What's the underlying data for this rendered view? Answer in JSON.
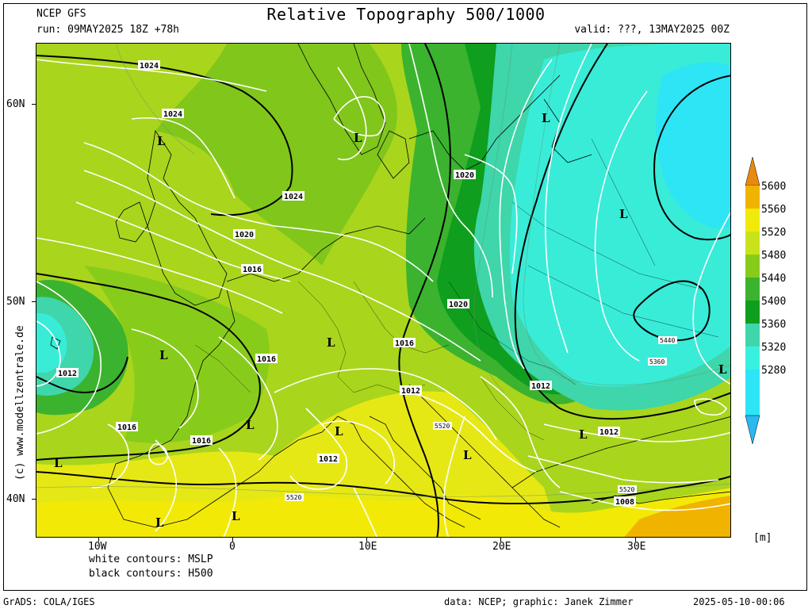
{
  "header": {
    "model": "NCEP GFS",
    "run": "run: 09MAY2025 18Z +78h",
    "title": "Relative Topography 500/1000",
    "valid": "valid: ???, 13MAY2025 00Z"
  },
  "side_credit": "(c) www.modellzentrale.de",
  "axes": {
    "lat_labels": [
      "60N",
      "50N",
      "40N"
    ],
    "lon_labels": [
      "10W",
      "0",
      "10E",
      "20E",
      "30E"
    ]
  },
  "footer": {
    "contours_white": "white contours: MSLP",
    "contours_black": "black contours: H500",
    "grads": "GrADS: COLA/IGES",
    "credits": "data: NCEP; graphic: Janek Zimmer",
    "timestamp": "2025-05-10-00:06"
  },
  "legend": {
    "levels": [
      "5280",
      "5320",
      "5360",
      "5400",
      "5440",
      "5480",
      "5520",
      "5560",
      "5600"
    ],
    "colors": [
      "#2de5f5",
      "#38f0e0",
      "#3ed6aa",
      "#0f9e1e",
      "#3bb32f",
      "#88cc1b",
      "#c8e31a",
      "#f0ea0a",
      "#f0b300",
      "#e88a10"
    ],
    "unit": "[m]"
  },
  "map_labels": {
    "isobars": [
      "1024",
      "1024",
      "1024",
      "1020",
      "1016",
      "1016",
      "1020",
      "1016",
      "1012",
      "1012",
      "1016",
      "1016",
      "1012",
      "1012",
      "1012",
      "1008",
      "1020"
    ],
    "heights": [
      "5440",
      "5360",
      "5520",
      "5520",
      "5520"
    ],
    "lows": [
      "L",
      "L",
      "L",
      "L",
      "L",
      "L",
      "L",
      "L",
      "L",
      "L",
      "L",
      "L",
      "L",
      "L"
    ]
  }
}
